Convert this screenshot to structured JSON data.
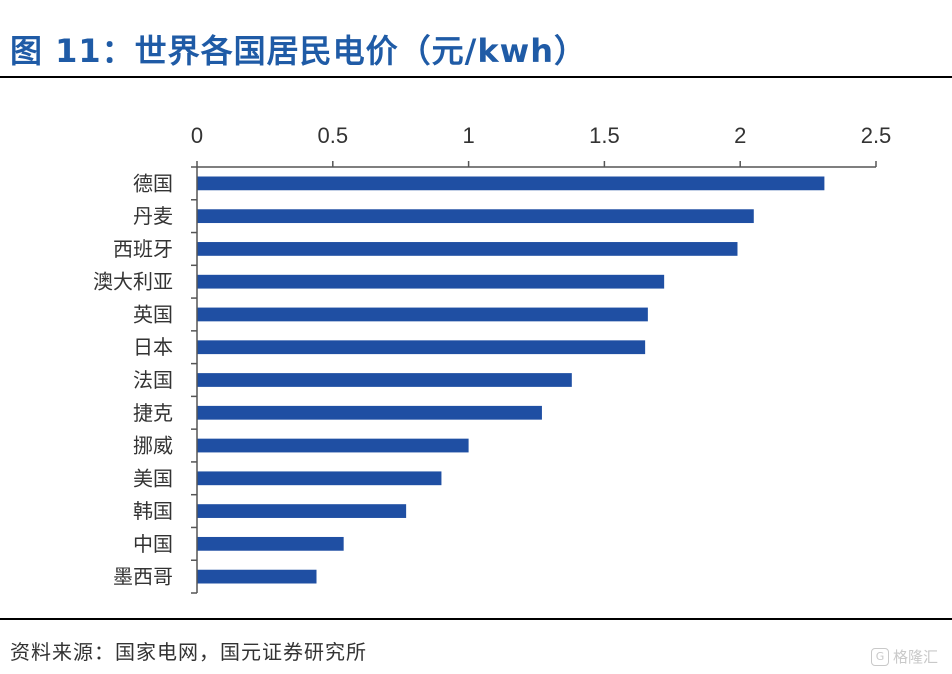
{
  "header": {
    "title": "图 11：世界各国居民电价（元/kwh）"
  },
  "footer": {
    "source": "资料来源：国家电网，国元证券研究所",
    "watermark": "格隆汇"
  },
  "chart_data": {
    "type": "bar",
    "orientation": "horizontal",
    "title": "",
    "xlabel": "",
    "ylabel": "",
    "xlim": [
      0,
      2.5
    ],
    "x_ticks": [
      "0",
      "0.5",
      "1",
      "1.5",
      "2",
      "2.5"
    ],
    "x_axis_position": "top",
    "categories": [
      "德国",
      "丹麦",
      "西班牙",
      "澳大利亚",
      "英国",
      "日本",
      "法国",
      "捷克",
      "挪威",
      "美国",
      "韩国",
      "中国",
      "墨西哥"
    ],
    "values": [
      2.31,
      2.05,
      1.99,
      1.72,
      1.66,
      1.65,
      1.38,
      1.27,
      1.0,
      0.9,
      0.77,
      0.54,
      0.44
    ],
    "bar_color": "#1f4fa3",
    "grid": false,
    "legend": "none"
  }
}
